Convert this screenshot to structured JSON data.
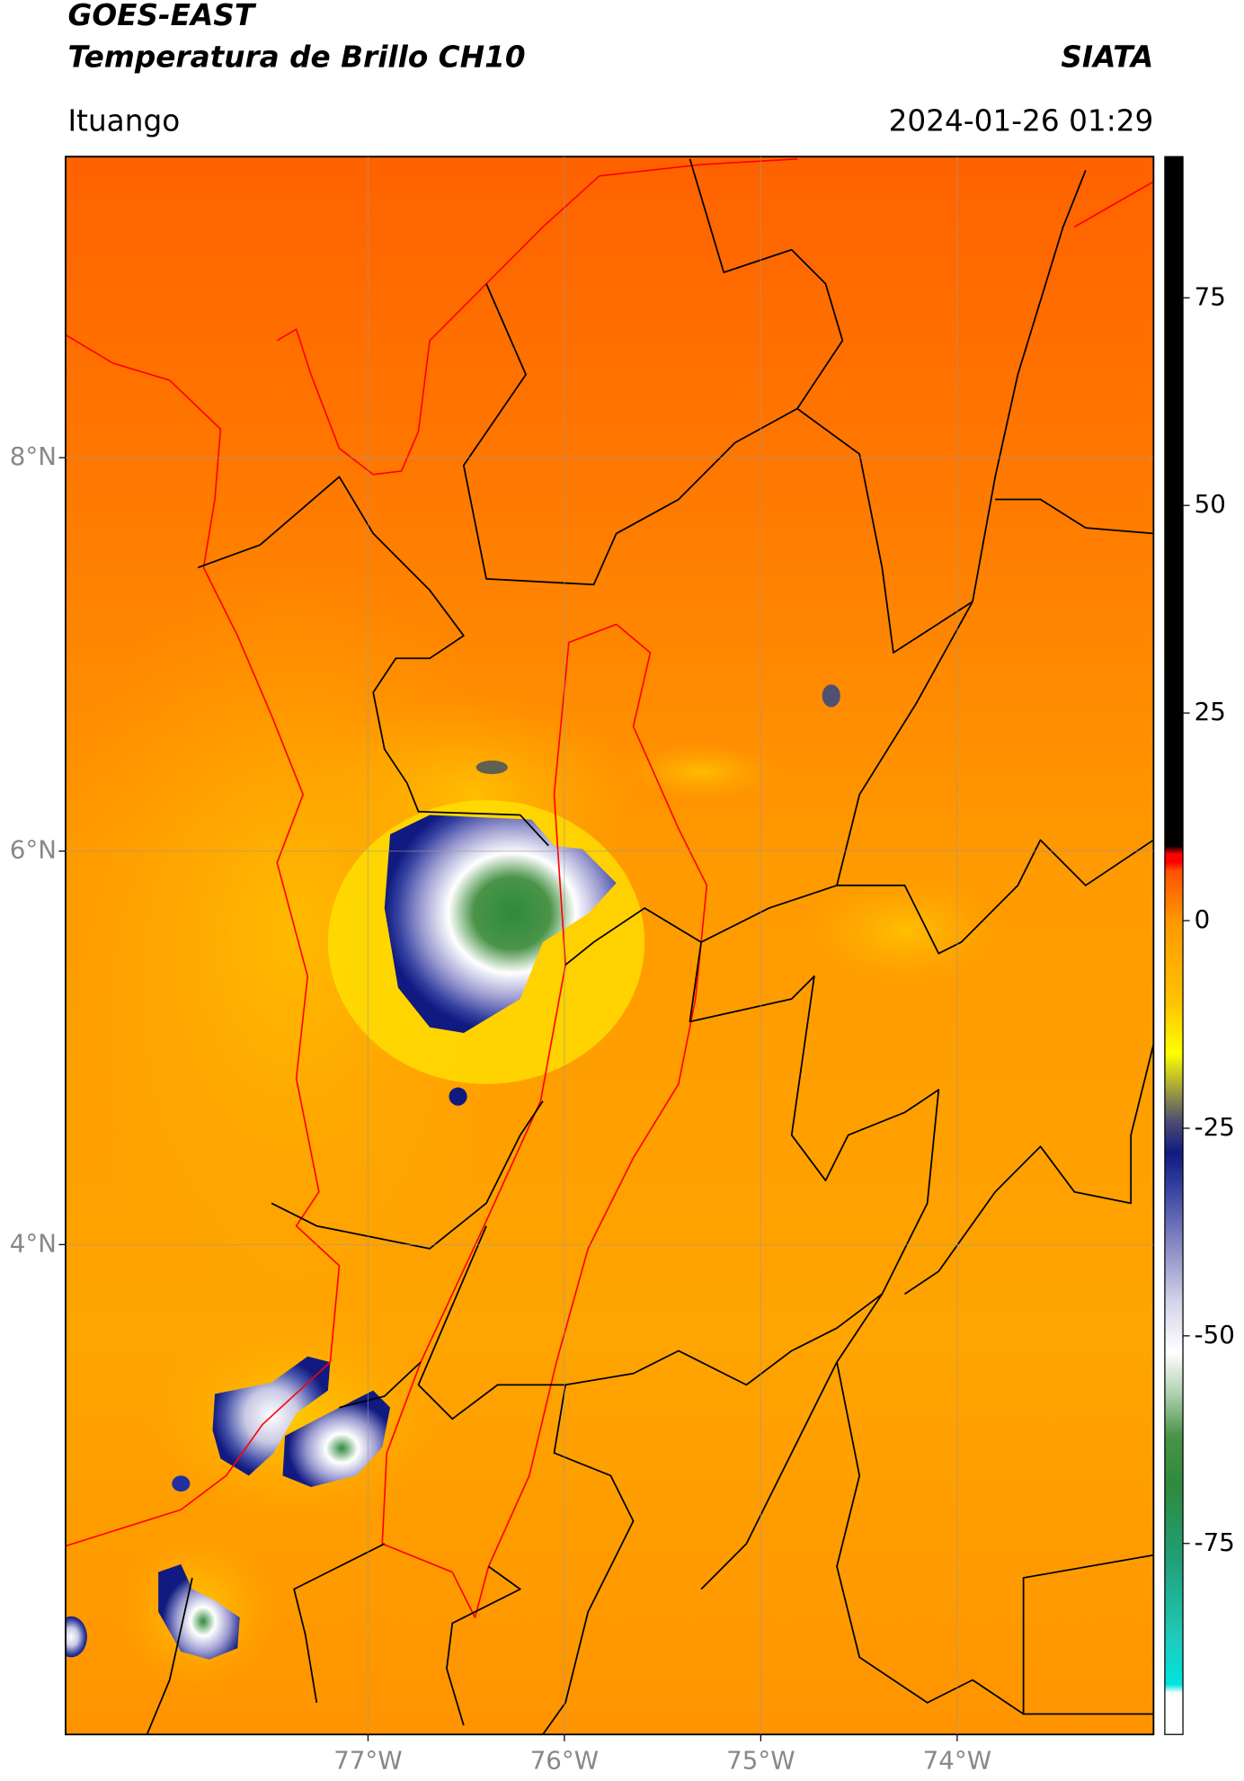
{
  "chart_data": {
    "type": "map",
    "title": "GOES-EAST",
    "subtitle": "Temperatura de Brillo CH10",
    "source": "SIATA",
    "location": "Ituango",
    "datetime": "2024-01-26 01:29",
    "xlim": [
      -78.54,
      -73.0
    ],
    "ylim": [
      1.51,
      9.53
    ],
    "xticks": [
      {
        "value": -77,
        "label": "77°W"
      },
      {
        "value": -76,
        "label": "76°W"
      },
      {
        "value": -75,
        "label": "75°W"
      },
      {
        "value": -74,
        "label": "74°W"
      }
    ],
    "yticks": [
      {
        "value": 8,
        "label": "8°N"
      },
      {
        "value": 6,
        "label": "6°N"
      },
      {
        "value": 4,
        "label": "4°N"
      }
    ],
    "grid": true,
    "colorbar": {
      "vlim": [
        -98,
        92
      ],
      "ticks": [
        75,
        50,
        25,
        0,
        -25,
        -50,
        -75
      ],
      "colormap": [
        {
          "value": -98,
          "color": "#ffffff"
        },
        {
          "value": -93,
          "color": "#ffffff"
        },
        {
          "value": -92,
          "color": "#00e5e0"
        },
        {
          "value": -86,
          "color": "#20c8b8"
        },
        {
          "value": -77,
          "color": "#20a078"
        },
        {
          "value": -68,
          "color": "#2e8a3c"
        },
        {
          "value": -62,
          "color": "#4a9448"
        },
        {
          "value": -57,
          "color": "#b0d0b0"
        },
        {
          "value": -52,
          "color": "#ffffff"
        },
        {
          "value": -46,
          "color": "#d4d4ea"
        },
        {
          "value": -39,
          "color": "#8888c4"
        },
        {
          "value": -32,
          "color": "#3440a0"
        },
        {
          "value": -28,
          "color": "#101a80"
        },
        {
          "value": -24,
          "color": "#505070"
        },
        {
          "value": -20,
          "color": "#a8a838"
        },
        {
          "value": -16,
          "color": "#ffff00"
        },
        {
          "value": -10,
          "color": "#ffc400"
        },
        {
          "value": 0,
          "color": "#ff9800"
        },
        {
          "value": 6,
          "color": "#ff5000"
        },
        {
          "value": 7,
          "color": "#ff0000"
        },
        {
          "value": 8,
          "color": "#ff0000"
        },
        {
          "value": 9,
          "color": "#000000"
        },
        {
          "value": 92,
          "color": "#000000"
        }
      ]
    }
  }
}
